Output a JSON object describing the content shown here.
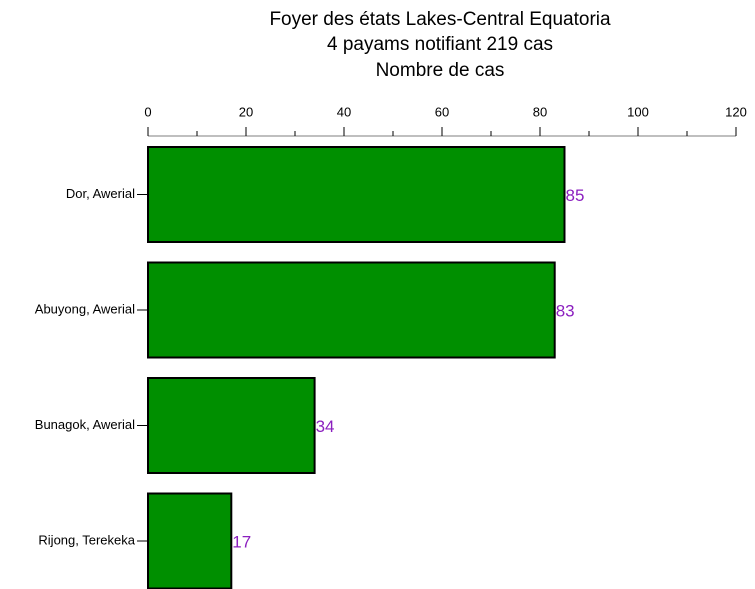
{
  "chart_data": {
    "type": "barh",
    "title": "Foyer des états Lakes-Central Equatoria",
    "subtitle": "4 payams notifiant 219 cas",
    "xlabel": "Nombre de cas",
    "categories": [
      "Dor, Awerial",
      "Abuyong, Awerial",
      "Bunagok, Awerial",
      "Rijong, Terekeka"
    ],
    "values": [
      85,
      83,
      34,
      17
    ],
    "color": "#008f00",
    "label_color": "#8b1fbf",
    "xlim": [
      0,
      120
    ],
    "xticks": [
      0,
      20,
      40,
      60,
      80,
      100,
      120
    ],
    "xminorticks": [
      10,
      30,
      50,
      70,
      90,
      110
    ]
  }
}
